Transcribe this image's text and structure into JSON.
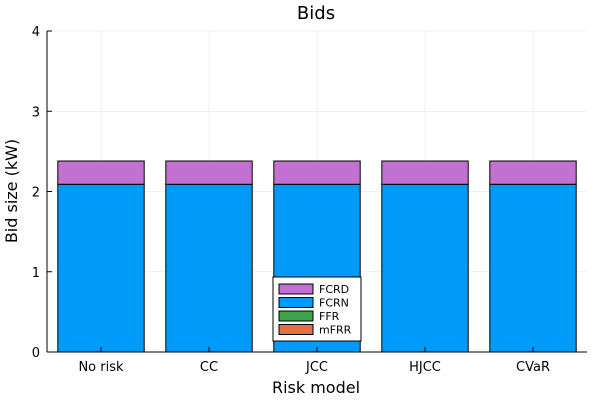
{
  "chart_data": {
    "type": "bar",
    "stacked": true,
    "title": "Bids",
    "xlabel": "Risk model",
    "ylabel": "Bid size (kW)",
    "categories": [
      "No risk",
      "CC",
      "JCC",
      "HJCC",
      "CVaR"
    ],
    "ylim": [
      0,
      4
    ],
    "yticks": [
      0,
      1,
      2,
      3,
      4
    ],
    "grid": true,
    "legend_position": "bottom-center",
    "series": [
      {
        "name": "mFRR",
        "color": "#e26f46",
        "values": [
          0,
          0,
          0,
          0,
          0
        ]
      },
      {
        "name": "FFR",
        "color": "#3da44d",
        "values": [
          0,
          0,
          0,
          0,
          0
        ]
      },
      {
        "name": "FCRN",
        "color": "#009af9",
        "values": [
          2.09,
          2.09,
          2.09,
          2.09,
          2.09
        ]
      },
      {
        "name": "FCRD",
        "color": "#c271d2",
        "values": [
          0.29,
          0.29,
          0.29,
          0.29,
          0.29
        ]
      }
    ],
    "legend_order": [
      "FCRD",
      "FCRN",
      "FFR",
      "mFRR"
    ]
  }
}
